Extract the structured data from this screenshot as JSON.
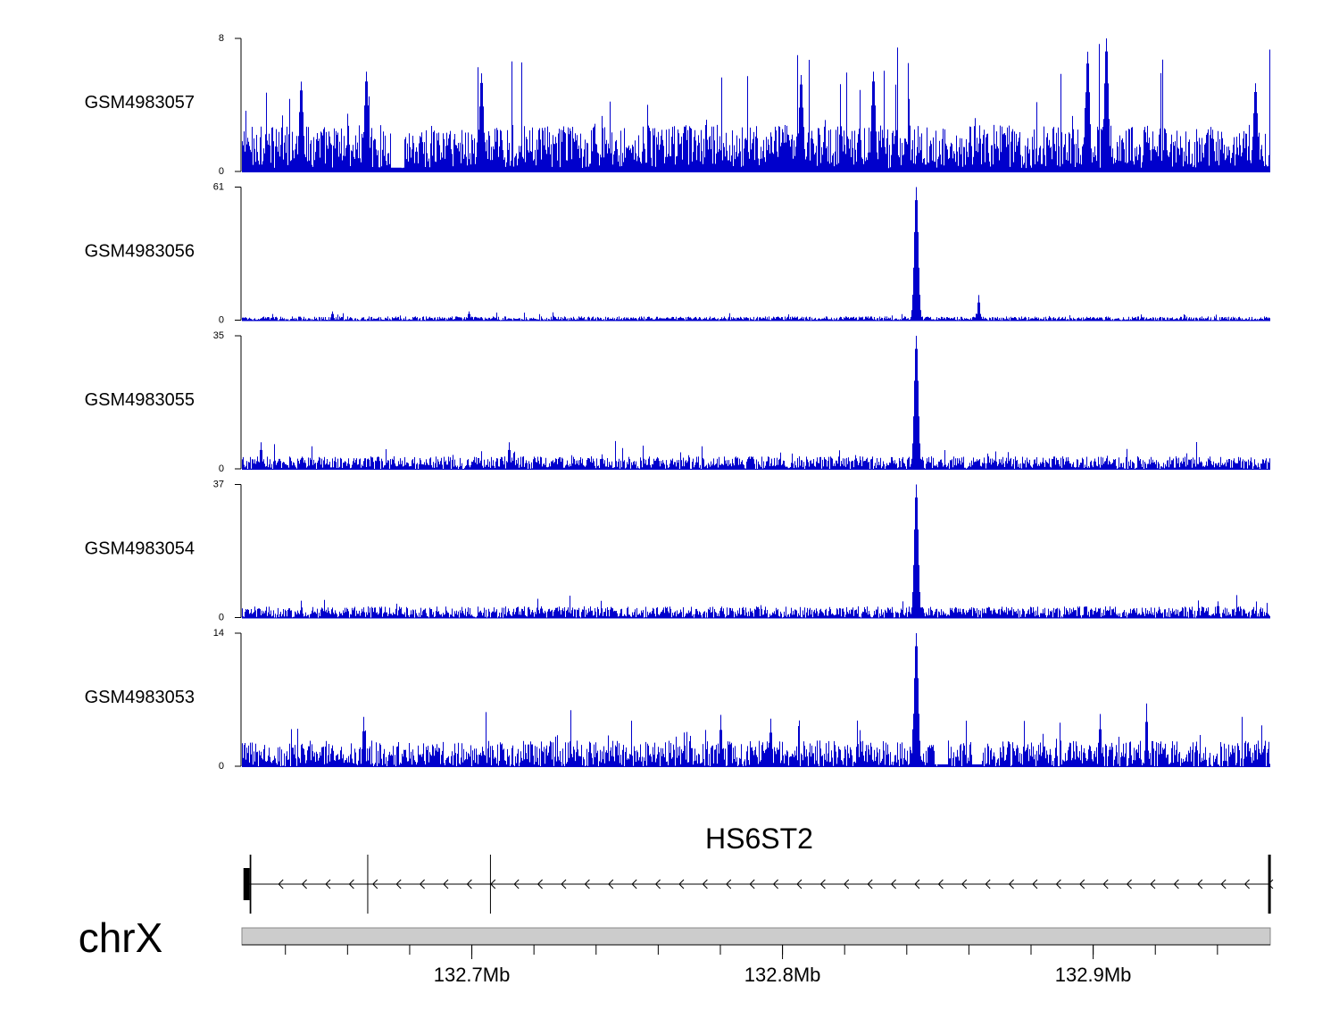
{
  "chart_data": {
    "type": "area",
    "x_unit": "Mb",
    "x_range": [
      132.626,
      132.957
    ],
    "series": [
      {
        "name": "GSM4983057",
        "ylim": [
          0,
          8
        ],
        "baseline": 1.5,
        "noise": 1.3,
        "spike_rate": 0.06,
        "spike_max": 5.5,
        "peaks": [
          {
            "x": 132.666,
            "y": 6.0
          },
          {
            "x": 132.645,
            "y": 5.4
          },
          {
            "x": 132.703,
            "y": 5.9
          },
          {
            "x": 132.806,
            "y": 5.8
          },
          {
            "x": 132.829,
            "y": 6.0
          },
          {
            "x": 132.898,
            "y": 7.2
          },
          {
            "x": 132.904,
            "y": 8.0
          },
          {
            "x": 132.952,
            "y": 5.3
          }
        ],
        "gaps": [
          [
            132.674,
            132.678
          ]
        ]
      },
      {
        "name": "GSM4983056",
        "ylim": [
          0,
          61
        ],
        "baseline": 0.8,
        "noise": 0.9,
        "spike_rate": 0.02,
        "spike_max": 2.5,
        "peaks": [
          {
            "x": 132.843,
            "y": 61
          },
          {
            "x": 132.863,
            "y": 11.5
          },
          {
            "x": 132.655,
            "y": 4
          },
          {
            "x": 132.699,
            "y": 4
          }
        ]
      },
      {
        "name": "GSM4983055",
        "ylim": [
          0,
          35
        ],
        "baseline": 1.6,
        "noise": 1.7,
        "spike_rate": 0.03,
        "spike_max": 4.5,
        "peaks": [
          {
            "x": 132.843,
            "y": 35
          },
          {
            "x": 132.632,
            "y": 7
          },
          {
            "x": 132.712,
            "y": 7
          }
        ]
      },
      {
        "name": "GSM4983054",
        "ylim": [
          0,
          37
        ],
        "baseline": 1.5,
        "noise": 1.6,
        "spike_rate": 0.03,
        "spike_max": 3.8,
        "peaks": [
          {
            "x": 132.843,
            "y": 37
          },
          {
            "x": 132.94,
            "y": 4.5
          }
        ]
      },
      {
        "name": "GSM4983053",
        "ylim": [
          0,
          14
        ],
        "baseline": 1.3,
        "noise": 1.4,
        "spike_rate": 0.05,
        "spike_max": 4.0,
        "peaks": [
          {
            "x": 132.843,
            "y": 14
          },
          {
            "x": 132.842,
            "y": 5.5
          },
          {
            "x": 132.665,
            "y": 5.2
          },
          {
            "x": 132.78,
            "y": 5.4
          },
          {
            "x": 132.796,
            "y": 5.0
          },
          {
            "x": 132.917,
            "y": 6.6
          },
          {
            "x": 132.902,
            "y": 5.5
          }
        ],
        "gaps": [
          [
            132.849,
            132.853
          ],
          [
            132.861,
            132.864
          ]
        ]
      }
    ],
    "gene": {
      "name": "HS6ST2",
      "strand": "-",
      "start": 132.628,
      "end": 132.957,
      "exons": [
        {
          "start": 132.6265,
          "end": 132.6285,
          "tall": true
        },
        {
          "start": 132.6285,
          "end": 132.629,
          "tall": false
        },
        {
          "start": 132.6665,
          "end": 132.6668,
          "tall": false
        },
        {
          "start": 132.706,
          "end": 132.7063,
          "tall": false
        },
        {
          "start": 132.9566,
          "end": 132.957,
          "tall": false
        }
      ]
    },
    "axis": {
      "chromosome": "chrX",
      "major_ticks": [
        132.7,
        132.8,
        132.9
      ],
      "major_tick_labels": [
        "132.7Mb",
        "132.8Mb",
        "132.9Mb"
      ],
      "minor_tick_step": 0.02,
      "minor_ticks_start": 132.64
    },
    "colors": {
      "signal": "#0000cc",
      "axis": "#000000",
      "ideogram_fill": "#cccccc",
      "ideogram_stroke": "#888888"
    }
  }
}
